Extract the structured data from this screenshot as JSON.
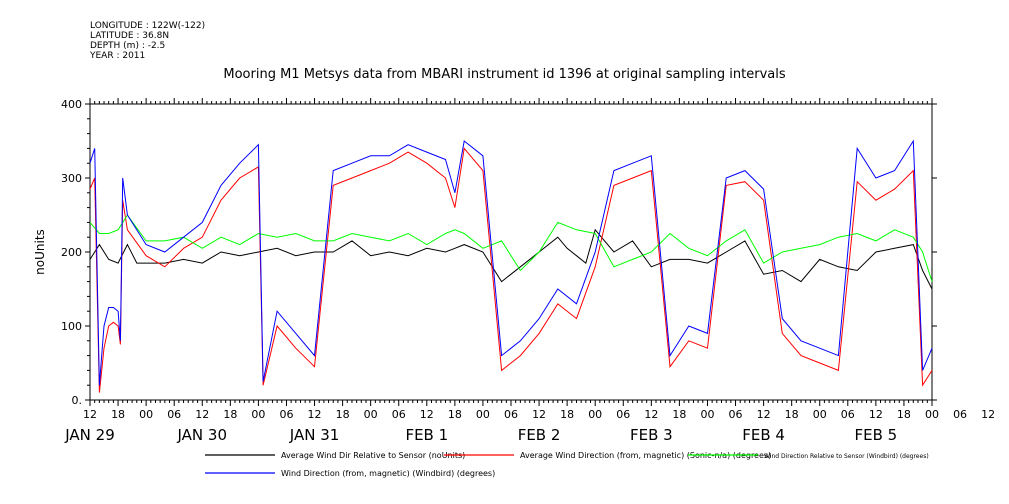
{
  "meta": {
    "longitude": "LONGITUDE : 122W(-122)",
    "latitude": "LATITUDE : 36.8N",
    "depth": "DEPTH (m) : -2.5",
    "year": "YEAR : 2011"
  },
  "chart_data": {
    "type": "line",
    "title": "Mooring M1 Metsys data from MBARI instrument id 1396 at original sampling intervals",
    "ylabel": "noUnits",
    "xlabel": "",
    "ylim": [
      0,
      400
    ],
    "y_ticks": [
      "0.",
      "100",
      "200",
      "300",
      "400"
    ],
    "x_hour_ticks": [
      "12",
      "18",
      "00",
      "06",
      "12",
      "18",
      "00",
      "06",
      "12",
      "18",
      "00",
      "06",
      "12",
      "18",
      "00",
      "06",
      "12",
      "18",
      "00",
      "06",
      "12",
      "18",
      "00",
      "06",
      "12",
      "18",
      "00",
      "06",
      "12",
      "18",
      "00",
      "06",
      "12"
    ],
    "x_day_labels": [
      "JAN 29",
      "JAN 30",
      "JAN 31",
      "FEB  1",
      "FEB  2",
      "FEB  3",
      "FEB  4",
      "FEB  5"
    ],
    "x_range_hours": [
      12,
      192
    ],
    "grid": false,
    "legend_position": "bottom",
    "series": [
      {
        "name": "Average Wind Dir Relative to Sensor (noUnits)",
        "color": "#000000",
        "x": [
          12,
          14,
          16,
          18,
          20,
          22,
          24,
          28,
          32,
          36,
          40,
          44,
          48,
          52,
          56,
          60,
          64,
          68,
          72,
          76,
          80,
          84,
          88,
          90,
          92,
          96,
          100,
          104,
          108,
          112,
          114,
          116,
          118,
          120,
          124,
          128,
          132,
          136,
          140,
          144,
          148,
          152,
          156,
          160,
          164,
          168,
          172,
          176,
          180,
          184,
          188,
          190,
          192
        ],
        "values": [
          190,
          210,
          190,
          185,
          210,
          185,
          185,
          185,
          190,
          185,
          200,
          195,
          200,
          205,
          195,
          200,
          200,
          215,
          195,
          200,
          195,
          205,
          200,
          205,
          210,
          200,
          160,
          180,
          200,
          220,
          205,
          195,
          185,
          230,
          200,
          215,
          180,
          190,
          190,
          185,
          200,
          215,
          170,
          175,
          160,
          190,
          180,
          175,
          200,
          205,
          210,
          175,
          150
        ]
      },
      {
        "name": "Average Wind Direction (from, magnetic) (Sonic-n/a) (degrees)",
        "color": "#ff0000",
        "x": [
          12,
          13,
          14,
          15,
          16,
          17,
          18,
          18.5,
          19,
          20,
          24,
          28,
          32,
          36,
          40,
          44,
          48,
          49,
          52,
          56,
          60,
          64,
          68,
          72,
          76,
          80,
          84,
          88,
          90,
          92,
          96,
          100,
          104,
          108,
          112,
          116,
          120,
          124,
          128,
          132,
          136,
          140,
          144,
          148,
          152,
          156,
          160,
          164,
          168,
          172,
          176,
          180,
          184,
          188,
          190,
          192
        ],
        "values": [
          285,
          300,
          10,
          70,
          100,
          105,
          100,
          75,
          270,
          230,
          195,
          180,
          205,
          220,
          270,
          300,
          315,
          20,
          100,
          70,
          45,
          290,
          300,
          310,
          320,
          335,
          320,
          300,
          260,
          340,
          310,
          40,
          60,
          90,
          130,
          110,
          180,
          290,
          300,
          310,
          45,
          80,
          70,
          290,
          295,
          270,
          90,
          60,
          50,
          40,
          295,
          270,
          285,
          310,
          20,
          40
        ]
      },
      {
        "name": "Wind Direction Relative to Sensor (Windbird) (degrees)",
        "color": "#00ff00",
        "x": [
          12,
          14,
          16,
          18,
          20,
          24,
          28,
          32,
          36,
          40,
          44,
          48,
          52,
          56,
          60,
          64,
          68,
          72,
          76,
          80,
          84,
          88,
          90,
          92,
          96,
          100,
          104,
          108,
          112,
          116,
          120,
          124,
          128,
          132,
          136,
          140,
          144,
          148,
          152,
          156,
          160,
          164,
          168,
          172,
          176,
          180,
          184,
          188,
          190,
          192
        ],
        "values": [
          240,
          225,
          225,
          230,
          250,
          215,
          215,
          220,
          205,
          220,
          210,
          225,
          220,
          225,
          215,
          215,
          225,
          220,
          215,
          225,
          210,
          225,
          230,
          225,
          205,
          215,
          175,
          200,
          240,
          230,
          225,
          180,
          190,
          200,
          225,
          205,
          195,
          215,
          230,
          185,
          200,
          205,
          210,
          220,
          225,
          215,
          230,
          220,
          200,
          160
        ]
      },
      {
        "name": "Wind Direction (from, magnetic) (Windbird) (degrees)",
        "color": "#0000ff",
        "x": [
          12,
          13,
          14,
          15,
          16,
          17,
          18,
          18.5,
          19,
          20,
          24,
          28,
          32,
          36,
          40,
          44,
          48,
          49,
          52,
          56,
          60,
          64,
          68,
          72,
          76,
          80,
          84,
          88,
          90,
          92,
          96,
          100,
          104,
          108,
          112,
          116,
          120,
          124,
          128,
          132,
          136,
          140,
          144,
          148,
          152,
          156,
          160,
          164,
          168,
          172,
          176,
          180,
          184,
          188,
          190,
          192
        ],
        "values": [
          320,
          340,
          20,
          100,
          125,
          125,
          120,
          80,
          300,
          250,
          210,
          200,
          220,
          240,
          290,
          320,
          345,
          25,
          120,
          90,
          60,
          310,
          320,
          330,
          330,
          345,
          335,
          325,
          280,
          350,
          330,
          60,
          80,
          110,
          150,
          130,
          200,
          310,
          320,
          330,
          60,
          100,
          90,
          300,
          310,
          285,
          110,
          80,
          70,
          60,
          340,
          300,
          310,
          350,
          40,
          70
        ]
      }
    ]
  }
}
